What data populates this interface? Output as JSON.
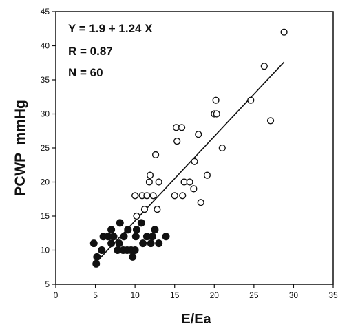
{
  "chart_data": {
    "type": "scatter",
    "title": "",
    "xlabel": "E/Ea",
    "ylabel": "PCWP  mmHg",
    "xlim": [
      0,
      35
    ],
    "ylim": [
      5,
      45
    ],
    "xticks": [
      "0",
      "5",
      "10",
      "15",
      "20",
      "25",
      "30",
      "35"
    ],
    "yticks": [
      "5",
      "10",
      "15",
      "20",
      "25",
      "30",
      "35",
      "40",
      "45"
    ],
    "grid": false,
    "annotations": [
      "Y = 1.9 + 1.24  X",
      "R = 0.87",
      "N = 60"
    ],
    "regression": {
      "intercept": 1.9,
      "slope": 1.24,
      "x_range": [
        5,
        28.8
      ]
    },
    "series": [
      {
        "marker": "filled-circle",
        "points": [
          [
            4.8,
            11
          ],
          [
            5.2,
            9
          ],
          [
            5.1,
            8
          ],
          [
            5.8,
            10
          ],
          [
            6.0,
            12
          ],
          [
            6.6,
            12
          ],
          [
            7.0,
            13
          ],
          [
            7.0,
            11
          ],
          [
            7.3,
            12
          ],
          [
            7.8,
            10
          ],
          [
            8.0,
            11
          ],
          [
            8.1,
            14
          ],
          [
            8.5,
            10
          ],
          [
            8.6,
            12
          ],
          [
            9.0,
            10
          ],
          [
            9.1,
            13
          ],
          [
            9.5,
            10
          ],
          [
            9.7,
            9
          ],
          [
            10.0,
            10
          ],
          [
            10.1,
            12
          ],
          [
            10.2,
            13
          ],
          [
            10.8,
            14
          ],
          [
            11.0,
            11
          ],
          [
            11.5,
            12
          ],
          [
            12.0,
            11
          ],
          [
            12.2,
            12
          ],
          [
            12.5,
            13
          ],
          [
            13.0,
            11
          ],
          [
            13.9,
            12
          ]
        ]
      },
      {
        "marker": "open-circle",
        "points": [
          [
            10.0,
            18
          ],
          [
            10.2,
            15
          ],
          [
            10.9,
            18
          ],
          [
            11.2,
            16
          ],
          [
            11.5,
            18
          ],
          [
            11.8,
            20
          ],
          [
            11.9,
            21
          ],
          [
            12.3,
            18
          ],
          [
            12.6,
            24
          ],
          [
            12.8,
            16
          ],
          [
            13.0,
            20
          ],
          [
            15.0,
            18
          ],
          [
            15.2,
            28
          ],
          [
            15.3,
            26
          ],
          [
            15.9,
            28
          ],
          [
            16.0,
            18
          ],
          [
            16.2,
            20
          ],
          [
            16.9,
            20
          ],
          [
            17.4,
            19
          ],
          [
            17.5,
            23
          ],
          [
            18.0,
            27
          ],
          [
            18.3,
            17
          ],
          [
            19.1,
            21
          ],
          [
            20.0,
            30
          ],
          [
            20.2,
            32
          ],
          [
            20.3,
            30
          ],
          [
            21.0,
            25
          ],
          [
            24.6,
            32
          ],
          [
            26.3,
            37
          ],
          [
            27.1,
            29
          ],
          [
            28.8,
            42
          ]
        ]
      }
    ]
  }
}
